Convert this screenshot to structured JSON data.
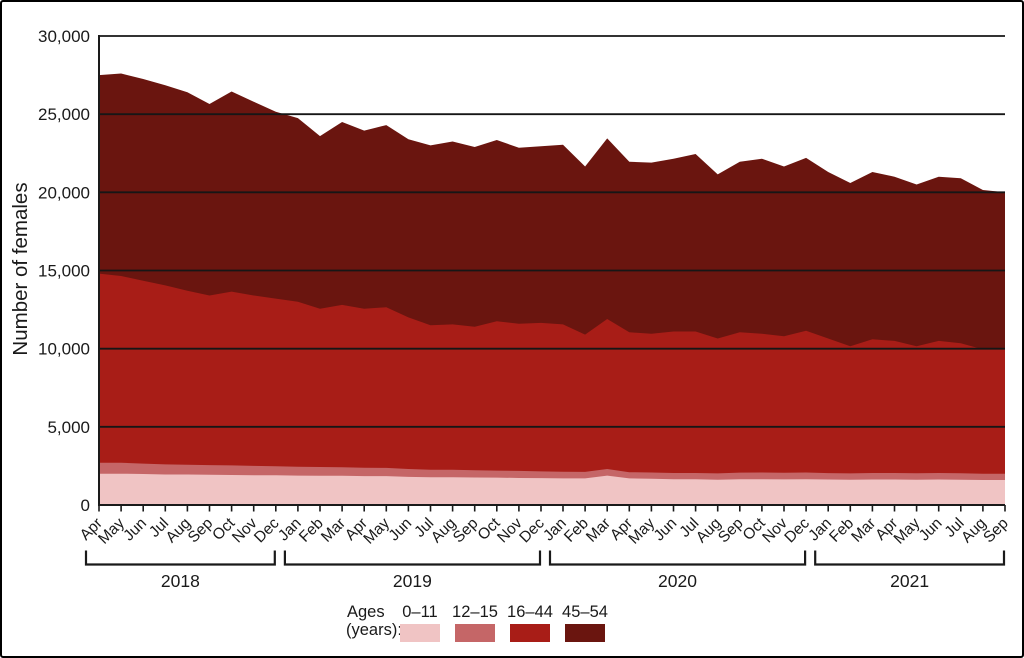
{
  "figure": {
    "y_axis_title": "Number of females",
    "legend_title_line1": "Ages",
    "legend_title_line2": "(years):"
  },
  "chart_data": {
    "type": "area",
    "stacked": true,
    "title": "",
    "xlabel": "",
    "ylabel": "Number of females",
    "ylim": [
      0,
      30000
    ],
    "y_tick_step": 5000,
    "y_tick_labels": [
      "0",
      "5,000",
      "10,000",
      "15,000",
      "20,000",
      "25,000",
      "30,000"
    ],
    "grid": "horizontal",
    "legend_position": "bottom",
    "month_labels": [
      "Apr",
      "May",
      "Jun",
      "Jul",
      "Aug",
      "Sep",
      "Oct",
      "Nov",
      "Dec",
      "Jan",
      "Feb",
      "Mar",
      "Apr",
      "May",
      "Jun",
      "Jul",
      "Aug",
      "Sep",
      "Oct",
      "Nov",
      "Dec",
      "Jan",
      "Feb",
      "Mar",
      "Apr",
      "May",
      "Jun",
      "Jul",
      "Aug",
      "Sep",
      "Oct",
      "Nov",
      "Dec",
      "Jan",
      "Feb",
      "Mar",
      "Apr",
      "May",
      "Jun",
      "Jul",
      "Aug",
      "Sep"
    ],
    "year_groups": [
      {
        "label": "2018",
        "start": 0,
        "count": 9
      },
      {
        "label": "2019",
        "start": 9,
        "count": 12
      },
      {
        "label": "2020",
        "start": 21,
        "count": 12
      },
      {
        "label": "2021",
        "start": 33,
        "count": 9
      }
    ],
    "series": [
      {
        "name": "0–11",
        "key": "0-11",
        "color": "#f0c4c4",
        "values": [
          2000,
          2000,
          1980,
          1950,
          1950,
          1930,
          1920,
          1900,
          1900,
          1880,
          1870,
          1870,
          1850,
          1850,
          1800,
          1780,
          1780,
          1760,
          1750,
          1730,
          1720,
          1700,
          1700,
          1880,
          1700,
          1680,
          1650,
          1650,
          1620,
          1650,
          1650,
          1640,
          1650,
          1630,
          1620,
          1630,
          1630,
          1620,
          1630,
          1620,
          1600,
          1600
        ]
      },
      {
        "name": "12–15",
        "key": "12-15",
        "color": "#c56667",
        "values": [
          700,
          700,
          670,
          650,
          620,
          620,
          610,
          600,
          580,
          570,
          560,
          550,
          530,
          520,
          500,
          470,
          470,
          460,
          450,
          450,
          430,
          430,
          420,
          420,
          400,
          400,
          400,
          400,
          400,
          420,
          430,
          420,
          430,
          410,
          400,
          420,
          420,
          410,
          420,
          410,
          400,
          400
        ]
      },
      {
        "name": "16–44",
        "key": "16-44",
        "color": "#a81d17",
        "values": [
          12100,
          11950,
          11700,
          11450,
          11130,
          10850,
          11120,
          10900,
          10720,
          10550,
          10120,
          10380,
          10170,
          10280,
          9700,
          9250,
          9300,
          9180,
          9550,
          9420,
          9500,
          9420,
          8780,
          9600,
          8950,
          8870,
          9050,
          9050,
          8630,
          8980,
          8870,
          8740,
          9070,
          8610,
          8130,
          8550,
          8450,
          8120,
          8450,
          8320,
          7950,
          8050
        ]
      },
      {
        "name": "45–54",
        "key": "45-54",
        "color": "#6a150f",
        "values": [
          12700,
          12950,
          12900,
          12800,
          12700,
          12250,
          12800,
          12400,
          11950,
          11750,
          11050,
          11700,
          11400,
          11650,
          11400,
          11500,
          11700,
          11500,
          11600,
          11250,
          11300,
          11500,
          10750,
          11550,
          10900,
          10950,
          11050,
          11350,
          10500,
          10900,
          11200,
          10850,
          11050,
          10650,
          10450,
          10700,
          10500,
          10350,
          10500,
          10550,
          10200,
          9950
        ]
      }
    ],
    "colors": {
      "gridline": "#161616",
      "axis": "#1a1a1a",
      "text": "#1a1a1a"
    }
  }
}
